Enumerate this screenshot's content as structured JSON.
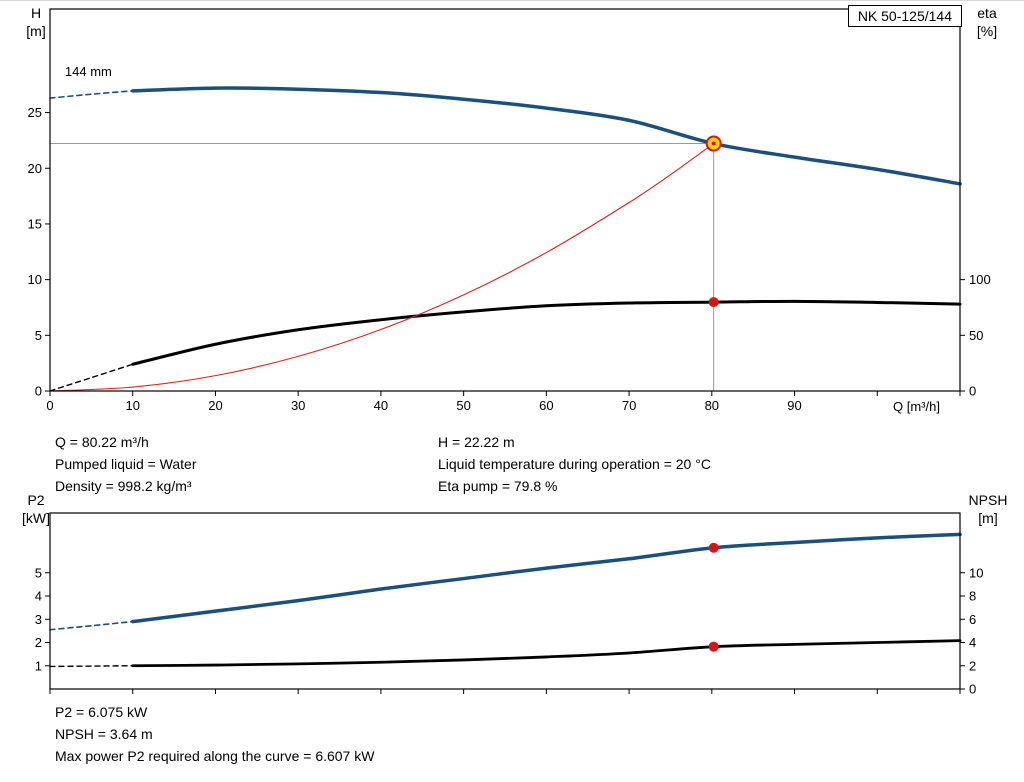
{
  "info_top": {
    "left": [
      "Q = 80.22 m³/h",
      "Pumped liquid = Water",
      "Density = 998.2 kg/m³"
    ],
    "right": [
      "H = 22.22 m",
      "Liquid temperature during operation = 20 °C",
      "Eta pump = 79.8 %"
    ]
  },
  "info_bottom": [
    "P2 = 6.075 kW",
    "NPSH = 3.64 m",
    "Max power P2 required along the curve = 6.607 kW"
  ],
  "chart_data": [
    {
      "type": "line",
      "title": "NK 50-125/144",
      "x": {
        "label": "Q [m³/h]",
        "min": 0,
        "max": 110,
        "ticks": [
          0,
          10,
          20,
          30,
          40,
          50,
          60,
          70,
          80,
          90,
          100,
          110
        ],
        "tick_labels": [
          0,
          10,
          20,
          30,
          40,
          50,
          60,
          70,
          80,
          90
        ]
      },
      "y_left": {
        "name": "H",
        "unit": "[m]",
        "min": 0,
        "max": 34.3,
        "ticks": [
          0,
          5,
          10,
          15,
          20,
          25
        ]
      },
      "y_right": {
        "name": "eta",
        "unit": "[%]",
        "scale": 0.1,
        "ticks": [
          0,
          50,
          100
        ]
      },
      "crosshair": {
        "x": 80.22,
        "y": 22.22
      },
      "series": [
        {
          "name": "head-curve-dashed",
          "color": "#1b4f7e",
          "width": 1.6,
          "dash": "5 4",
          "points": [
            [
              0,
              26.3
            ],
            [
              5,
              26.65
            ],
            [
              10,
              26.95
            ]
          ]
        },
        {
          "name": "head-curve",
          "color": "#1b4f7e",
          "width": 3.5,
          "points": [
            [
              10,
              26.95
            ],
            [
              20,
              27.2
            ],
            [
              30,
              27.1
            ],
            [
              40,
              26.8
            ],
            [
              50,
              26.2
            ],
            [
              60,
              25.4
            ],
            [
              70,
              24.3
            ],
            [
              80.22,
              22.22
            ],
            [
              90,
              21.0
            ],
            [
              100,
              19.9
            ],
            [
              110,
              18.6
            ]
          ]
        },
        {
          "name": "eta-curve-dashed",
          "color": "#000000",
          "width": 1.4,
          "dash": "5 4",
          "points": [
            [
              0,
              0
            ],
            [
              5,
              1.2
            ],
            [
              10,
              2.4
            ]
          ]
        },
        {
          "name": "eta-curve",
          "color": "#000000",
          "width": 3.0,
          "points": [
            [
              10,
              2.4
            ],
            [
              20,
              4.2
            ],
            [
              30,
              5.5
            ],
            [
              40,
              6.4
            ],
            [
              50,
              7.1
            ],
            [
              60,
              7.65
            ],
            [
              70,
              7.9
            ],
            [
              80.22,
              7.98
            ],
            [
              90,
              8.05
            ],
            [
              100,
              7.95
            ],
            [
              110,
              7.8
            ]
          ]
        },
        {
          "name": "system-curve",
          "color": "#e02020",
          "width": 1.1,
          "points": [
            [
              0,
              0
            ],
            [
              10,
              0.35
            ],
            [
              20,
              1.38
            ],
            [
              30,
              3.11
            ],
            [
              40,
              5.52
            ],
            [
              50,
              8.63
            ],
            [
              60,
              12.43
            ],
            [
              70,
              16.92
            ],
            [
              75,
              19.42
            ],
            [
              80.22,
              22.22
            ]
          ]
        }
      ],
      "markers": [
        {
          "name": "duty-point-head",
          "style": "target",
          "x": 80.22,
          "y": 22.22,
          "fill": "#ffd800",
          "stroke": "#e01010"
        },
        {
          "name": "duty-point-eta",
          "style": "dot",
          "x": 80.22,
          "y": 7.98,
          "fill": "#e01010"
        }
      ],
      "annotations": [
        {
          "text": "144 mm",
          "x": 1.8,
          "y": 28.3
        }
      ]
    },
    {
      "type": "line",
      "x": {
        "min": 0,
        "max": 110,
        "ticks": [
          0,
          10,
          20,
          30,
          40,
          50,
          60,
          70,
          80,
          90,
          100,
          110
        ],
        "tick_labels": []
      },
      "y_left": {
        "name": "P2",
        "unit": "[kW]",
        "min": 0,
        "max": 7.57,
        "ticks": [
          1,
          2,
          3,
          4,
          5
        ]
      },
      "y_right": {
        "name": "NPSH",
        "unit": "[m]",
        "scale": 0.5,
        "ticks": [
          0,
          2,
          4,
          6,
          8,
          10
        ]
      },
      "series": [
        {
          "name": "p2-curve-dashed",
          "color": "#1b4f7e",
          "width": 1.6,
          "dash": "5 4",
          "points": [
            [
              0,
              2.55
            ],
            [
              5,
              2.72
            ],
            [
              10,
              2.9
            ]
          ]
        },
        {
          "name": "p2-curve",
          "color": "#1b4f7e",
          "width": 3.5,
          "points": [
            [
              10,
              2.9
            ],
            [
              20,
              3.35
            ],
            [
              30,
              3.8
            ],
            [
              40,
              4.3
            ],
            [
              50,
              4.75
            ],
            [
              60,
              5.2
            ],
            [
              70,
              5.6
            ],
            [
              80.22,
              6.075
            ],
            [
              90,
              6.3
            ],
            [
              100,
              6.5
            ],
            [
              110,
              6.65
            ]
          ]
        },
        {
          "name": "npsh-curve-dashed",
          "color": "#000000",
          "width": 1.4,
          "dash": "5 4",
          "points": [
            [
              0,
              0.97
            ],
            [
              5,
              0.985
            ],
            [
              10,
              1.0
            ]
          ]
        },
        {
          "name": "npsh-curve",
          "color": "#000000",
          "width": 2.8,
          "points": [
            [
              10,
              1.0
            ],
            [
              20,
              1.03
            ],
            [
              30,
              1.08
            ],
            [
              40,
              1.15
            ],
            [
              50,
              1.25
            ],
            [
              60,
              1.38
            ],
            [
              70,
              1.55
            ],
            [
              80.22,
              1.82
            ],
            [
              90,
              1.92
            ],
            [
              100,
              2.0
            ],
            [
              110,
              2.08
            ]
          ]
        }
      ],
      "markers": [
        {
          "name": "duty-point-p2",
          "style": "dot",
          "x": 80.22,
          "y": 6.075,
          "fill": "#e01010"
        },
        {
          "name": "duty-point-npsh",
          "style": "dot",
          "x": 80.22,
          "y": 1.82,
          "fill": "#e01010"
        }
      ],
      "annotations": []
    }
  ]
}
